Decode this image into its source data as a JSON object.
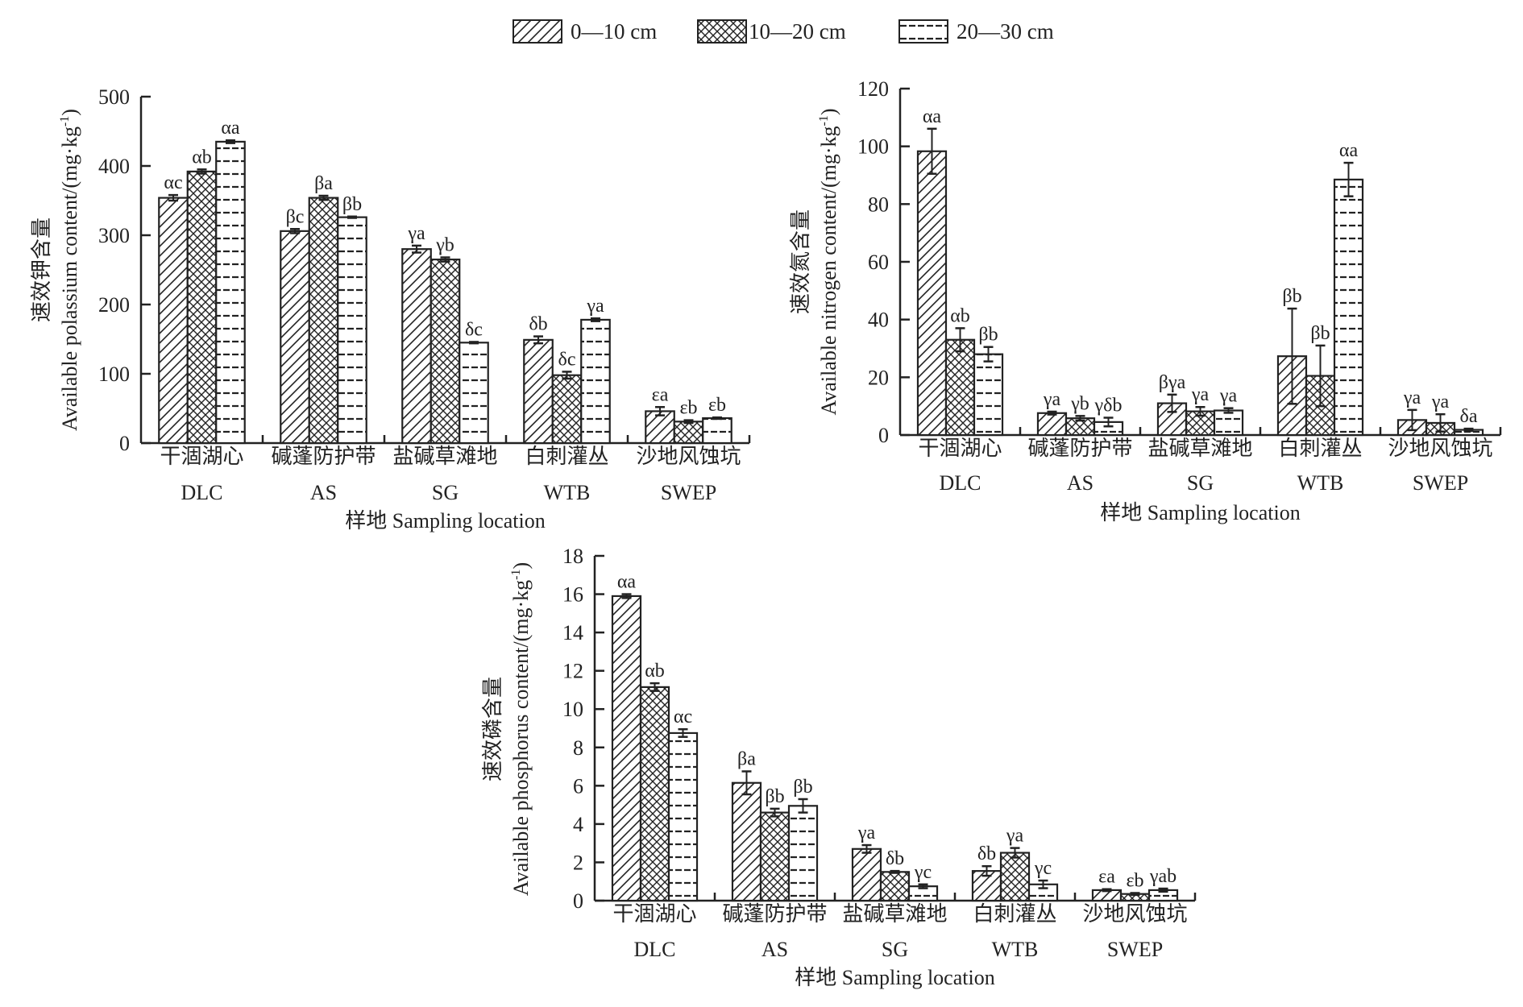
{
  "legend": {
    "items": [
      {
        "label": "0—10 cm",
        "pattern": "hatch"
      },
      {
        "label": "10—20 cm",
        "pattern": "cross"
      },
      {
        "label": "20—30 cm",
        "pattern": "dash"
      }
    ]
  },
  "chart_data": [
    {
      "type": "bar",
      "title": "",
      "ylabel_zh": "速效钾含量",
      "ylabel_en": "Available polassium content/(mg·kg",
      "ylabel_unit_sup": "-1",
      "ylabel_close": ")",
      "xlabel": "样地 Sampling location",
      "ylim": [
        0,
        500
      ],
      "yticks": [
        "0",
        "100",
        "200",
        "300",
        "400",
        "500"
      ],
      "categories_zh": [
        "干涸湖心",
        "碱蓬防护带",
        "盐碱草滩地",
        "白刺灌丛",
        "沙地风蚀坑"
      ],
      "categories_en": [
        "DLC",
        "AS",
        "SG",
        "WTB",
        "SWEP"
      ],
      "series": [
        {
          "name": "0—10 cm",
          "values": [
            354,
            306,
            280,
            149,
            46
          ],
          "errors": [
            4,
            3,
            5,
            5,
            6
          ],
          "labels": [
            "αc",
            "βc",
            "γa",
            "δb",
            "εa"
          ]
        },
        {
          "name": "10—20 cm",
          "values": [
            392,
            354,
            265,
            98,
            31
          ],
          "errors": [
            3,
            3,
            3,
            5,
            2
          ],
          "labels": [
            "αb",
            "βa",
            "γb",
            "δc",
            "εb"
          ]
        },
        {
          "name": "20—30 cm",
          "values": [
            435,
            326,
            145,
            178,
            36
          ],
          "errors": [
            2,
            1,
            1,
            2,
            1
          ],
          "labels": [
            "αa",
            "βb",
            "δc",
            "γa",
            "εb"
          ]
        }
      ]
    },
    {
      "type": "bar",
      "title": "",
      "ylabel_zh": "速效氮含量",
      "ylabel_en": "Available nitrogen content/(mg·kg",
      "ylabel_unit_sup": "-1",
      "ylabel_close": ")",
      "xlabel": "样地 Sampling location",
      "ylim": [
        0,
        120
      ],
      "yticks": [
        "0",
        "20",
        "40",
        "60",
        "80",
        "100",
        "120"
      ],
      "categories_zh": [
        "干涸湖心",
        "碱蓬防护带",
        "盐碱草滩地",
        "白刺灌丛",
        "沙地风蚀坑"
      ],
      "categories_en": [
        "DLC",
        "AS",
        "SG",
        "WTB",
        "SWEP"
      ],
      "series": [
        {
          "name": "0—10 cm",
          "values": [
            98.3,
            7.6,
            11.0,
            27.3,
            5.2
          ],
          "errors": [
            7.8,
            0.5,
            3.0,
            16.5,
            3.5
          ],
          "labels": [
            "αa",
            "γa",
            "βγa",
            "βb",
            "γa"
          ]
        },
        {
          "name": "10—20 cm",
          "values": [
            33.0,
            5.8,
            8.2,
            20.5,
            4.2
          ],
          "errors": [
            4.0,
            0.8,
            1.5,
            10.5,
            3.0
          ],
          "labels": [
            "αb",
            "γb",
            "γa",
            "βb",
            "γa"
          ]
        },
        {
          "name": "20—30 cm",
          "values": [
            28.0,
            4.5,
            8.5,
            88.5,
            1.8
          ],
          "errors": [
            2.5,
            1.5,
            0.8,
            5.8,
            0.4
          ],
          "labels": [
            "βb",
            "γδb",
            "γa",
            "αa",
            "δa"
          ]
        }
      ]
    },
    {
      "type": "bar",
      "title": "",
      "ylabel_zh": "速效磷含量",
      "ylabel_en": "Available phosphorus content/(mg·kg",
      "ylabel_unit_sup": "-1",
      "ylabel_close": ")",
      "xlabel": "样地 Sampling location",
      "ylim": [
        0,
        18
      ],
      "yticks": [
        "0",
        "2",
        "4",
        "6",
        "8",
        "10",
        "12",
        "14",
        "16",
        "18"
      ],
      "categories_zh": [
        "干涸湖心",
        "碱蓬防护带",
        "盐碱草滩地",
        "白刺灌丛",
        "沙地风蚀坑"
      ],
      "categories_en": [
        "DLC",
        "AS",
        "SG",
        "WTB",
        "SWEP"
      ],
      "series": [
        {
          "name": "0—10 cm",
          "values": [
            15.9,
            6.15,
            2.7,
            1.55,
            0.55
          ],
          "errors": [
            0.1,
            0.6,
            0.2,
            0.25,
            0.05
          ],
          "labels": [
            "αa",
            "βa",
            "γa",
            "δb",
            "εa"
          ]
        },
        {
          "name": "10—20 cm",
          "values": [
            11.15,
            4.6,
            1.5,
            2.5,
            0.35
          ],
          "errors": [
            0.2,
            0.2,
            0.05,
            0.25,
            0.05
          ],
          "labels": [
            "αb",
            "βb",
            "δb",
            "γa",
            "εb"
          ]
        },
        {
          "name": "20—30 cm",
          "values": [
            8.75,
            4.95,
            0.75,
            0.85,
            0.55
          ],
          "errors": [
            0.2,
            0.35,
            0.1,
            0.2,
            0.08
          ],
          "labels": [
            "αc",
            "βb",
            "γc",
            "γc",
            "γab"
          ]
        }
      ]
    }
  ]
}
